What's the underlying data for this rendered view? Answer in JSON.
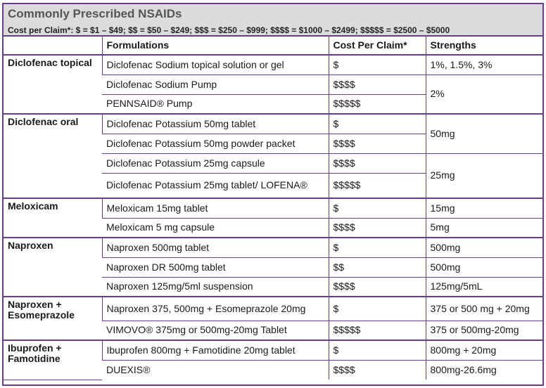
{
  "title": "Commonly Prescribed NSAIDs",
  "cost_legend": "Cost per Claim*: $ = $1 – $49; $$ = $50 – $249; $$$ = $250 – $999; $$$$ = $1000 – $2499; $$$$$ = $2500 – $5000",
  "columns": {
    "drug": "",
    "formulations": "Formulations",
    "cost": "Cost Per Claim*",
    "strengths": "Strengths"
  },
  "rows": [
    {
      "drug": "Diclofenac topical",
      "formulation": "Diclofenac Sodium topical solution or gel",
      "cost": "$",
      "strength": "1%, 1.5%, 3%"
    },
    {
      "formulation": "Diclofenac Sodium Pump",
      "cost": "$$$$",
      "strength": "2%"
    },
    {
      "formulation": "PENNSAID® Pump",
      "cost": "$$$$$"
    },
    {
      "drug": "Diclofenac oral",
      "formulation": "Diclofenac Potassium 50mg tablet",
      "cost": "$",
      "strength": "50mg"
    },
    {
      "formulation": "Diclofenac Potassium 50mg powder packet",
      "cost": "$$$$"
    },
    {
      "formulation": "Diclofenac Potassium 25mg capsule",
      "cost": "$$$$",
      "strength": "25mg"
    },
    {
      "formulation": "Diclofenac Potassium 25mg tablet/ LOFENA®",
      "cost": "$$$$$"
    },
    {
      "drug": "Meloxicam",
      "formulation": "Meloxicam 15mg tablet",
      "cost": "$",
      "strength": "15mg"
    },
    {
      "formulation": "Meloxicam 5 mg capsule",
      "cost": "$$$$",
      "strength": "5mg"
    },
    {
      "drug": "Naproxen",
      "formulation": "Naproxen 500mg tablet",
      "cost": "$",
      "strength": "500mg"
    },
    {
      "formulation": "Naproxen DR 500mg tablet",
      "cost": "$$",
      "strength": "500mg"
    },
    {
      "formulation": "Naproxen 125mg/5ml suspension",
      "cost": "$$$$",
      "strength": "125mg/5mL"
    },
    {
      "drug": "Naproxen + Esomeprazole",
      "formulation": "Naproxen 375, 500mg + Esomeprazole 20mg",
      "cost": "$",
      "strength": "375 or 500 mg + 20mg"
    },
    {
      "formulation": "VIMOVO® 375mg or 500mg-20mg Tablet",
      "cost": "$$$$$",
      "strength": "375 or 500mg-20mg"
    },
    {
      "drug": "Ibuprofen + Famotidine",
      "formulation": "Ibuprofen 800mg + Famotidine 20mg tablet",
      "cost": "$",
      "strength": "800mg + 20mg"
    },
    {
      "formulation": "DUEXIS®",
      "cost": "$$$$",
      "strength": "800mg-26.6mg"
    }
  ],
  "colors": {
    "border": "#6a3d8f",
    "header_bg": "#dcdcdc",
    "title": "#555555"
  }
}
